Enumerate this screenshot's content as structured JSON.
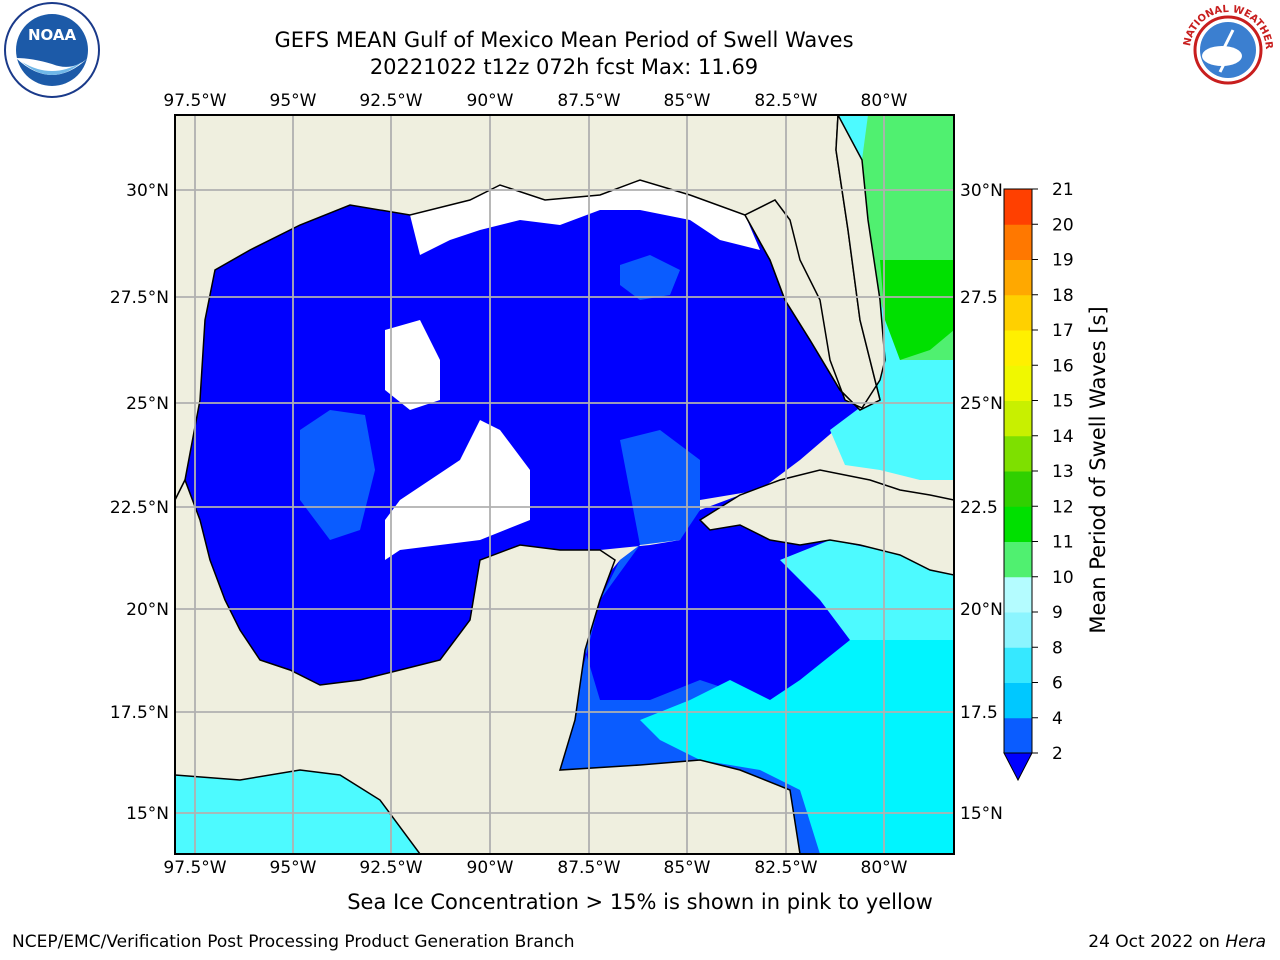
{
  "title_line1": "GEFS MEAN Gulf of Mexico Mean Period of Swell Waves",
  "title_line2": "20221022 t12z 072h fcst   Max: 11.69",
  "lon_labels": [
    "97.5°W",
    "95°W",
    "92.5°W",
    "90°W",
    "87.5°W",
    "85°W",
    "82.5°W",
    "80°W"
  ],
  "lat_labels_left": [
    "30°N",
    "27.5°N",
    "25°N",
    "22.5°N",
    "20°N",
    "17.5°N",
    "15°N"
  ],
  "lat_labels_right": [
    "30°N",
    "27.5",
    "25°N",
    "22.5",
    "20°N",
    "17.5",
    "15°N"
  ],
  "colorbar": {
    "label": "Mean Period of Swell Waves [s]",
    "ticks": [
      "2",
      "4",
      "6",
      "8",
      "9",
      "10",
      "11",
      "12",
      "13",
      "14",
      "15",
      "16",
      "17",
      "18",
      "19",
      "20",
      "21"
    ],
    "colors": [
      "#0a5cff",
      "#00c8ff",
      "#36e8ff",
      "#8cf5ff",
      "#b4fcff",
      "#50f070",
      "#00e000",
      "#30d000",
      "#7ee000",
      "#c8f000",
      "#f0f800",
      "#fff000",
      "#ffd000",
      "#ffa800",
      "#ff7800",
      "#ff4000",
      "#ff1000",
      "#ff0000"
    ],
    "under_color": "#0000ff"
  },
  "legend_note": "Sea Ice Concentration > 15% is shown in pink to yellow",
  "footer_left": "NCEP/EMC/Verification Post Processing Product Generation Branch",
  "footer_date": "24 Oct 2022 on",
  "footer_host": "Hera",
  "logos": {
    "left": "NOAA",
    "right": "NATIONAL WEATHER SERVICE"
  },
  "colors": {
    "land": "#efefdf",
    "gulf_low": "#0000ff",
    "swell_2_4": "#0a5cff",
    "swell_4_6": "#00f5ff",
    "swell_6_8": "#4dfaff",
    "swell_9_10": "#50f070",
    "swell_10_11": "#00e000",
    "grid": "#b0b0b0"
  }
}
